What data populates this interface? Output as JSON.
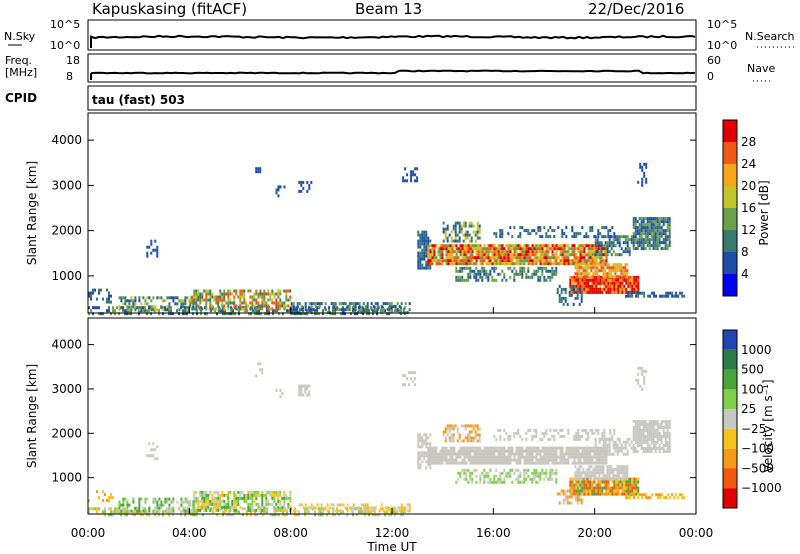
{
  "header": {
    "station": "Kapuskasing (fitACF)",
    "beam": "Beam 13",
    "date": "22/Dec/2016"
  },
  "noise_panel": {
    "left_label": "N.Sky",
    "left_ticks": [
      "10^5",
      "10^0"
    ],
    "right_label": "N.Search",
    "right_ticks": [
      "10^5",
      "10^0"
    ]
  },
  "freq_panel": {
    "left_label_1": "Freq.",
    "left_label_2": "[MHz]",
    "left_ticks": [
      "18",
      "8"
    ],
    "right_label": "Nave",
    "right_ticks": [
      "60",
      "0"
    ]
  },
  "cpid_panel": {
    "label": "CPID",
    "text": "tau (fast) 503"
  },
  "chart_data": [
    {
      "type": "heatmap",
      "name": "power",
      "ylabel": "Slant Range [km]",
      "xlabel": "Time UT",
      "x_ticks": [
        "00:00",
        "04:00",
        "08:00",
        "12:00",
        "16:00",
        "20:00",
        "00:00"
      ],
      "x_range_hours": [
        0,
        24
      ],
      "y_ticks": [
        1000,
        2000,
        3000,
        4000
      ],
      "y_range_km": [
        180,
        4600
      ],
      "colorbar_label": "Power [dB]",
      "colorbar_ticks": [
        "4",
        "8",
        "12",
        "16",
        "20",
        "24",
        "28"
      ],
      "colors": [
        "#0000f0",
        "#1f4ea6",
        "#3a7a6e",
        "#6aa14a",
        "#c3c42a",
        "#f7a51a",
        "#f05a16",
        "#e00000"
      ]
    },
    {
      "type": "heatmap",
      "name": "velocity",
      "ylabel": "Slant Range [km]",
      "xlabel": "Time UT",
      "x_ticks": [
        "00:00",
        "04:00",
        "08:00",
        "12:00",
        "16:00",
        "20:00",
        "00:00"
      ],
      "x_range_hours": [
        0,
        24
      ],
      "y_ticks": [
        1000,
        2000,
        3000,
        4000
      ],
      "y_range_km": [
        180,
        4600
      ],
      "colorbar_label": "Velocity [m s⁻¹]",
      "colorbar_ticks": [
        "1000",
        "500",
        "100",
        "25",
        "−25",
        "−100",
        "−500",
        "−1000"
      ],
      "colors": [
        "#2046b0",
        "#2a7a4a",
        "#4aa63a",
        "#7ed04a",
        "#c8c8c0",
        "#f7c21a",
        "#f79a18",
        "#f05a10",
        "#e00000"
      ]
    }
  ]
}
